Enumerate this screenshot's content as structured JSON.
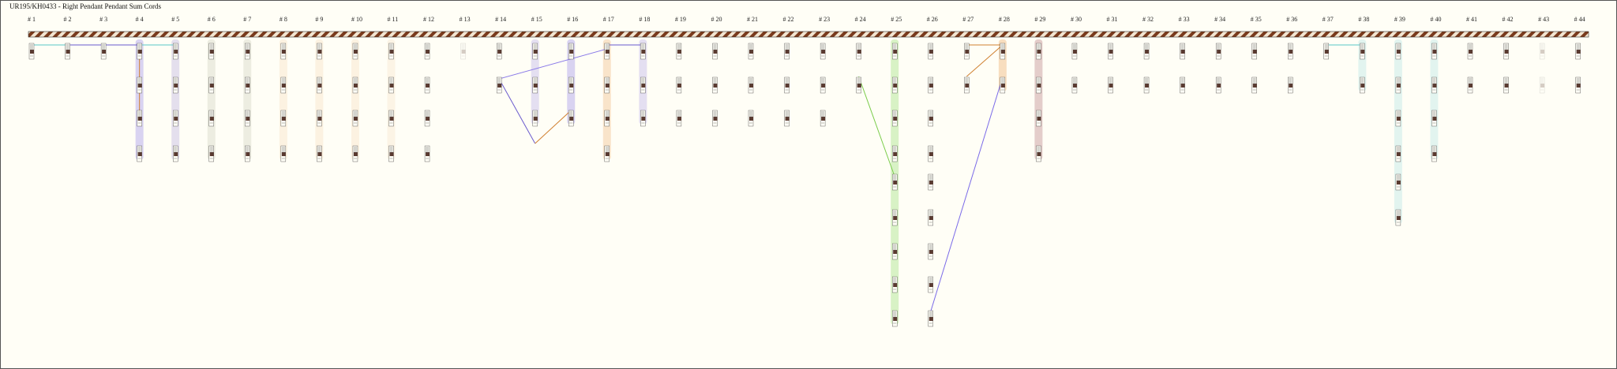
{
  "title": "UR195/KH0433 - Right Pendant Pendant Sum Cords",
  "cords": [
    {
      "label": "# 1"
    },
    {
      "label": "# 2"
    },
    {
      "label": "# 3"
    },
    {
      "label": "# 4"
    },
    {
      "label": "# 5"
    },
    {
      "label": "# 6"
    },
    {
      "label": "# 7"
    },
    {
      "label": "# 8"
    },
    {
      "label": "# 9"
    },
    {
      "label": "# 10"
    },
    {
      "label": "# 11"
    },
    {
      "label": "# 12"
    },
    {
      "label": "# 13"
    },
    {
      "label": "# 14"
    },
    {
      "label": "# 15"
    },
    {
      "label": "# 16"
    },
    {
      "label": "# 17"
    },
    {
      "label": "# 18"
    },
    {
      "label": "# 19"
    },
    {
      "label": "# 20"
    },
    {
      "label": "# 21"
    },
    {
      "label": "# 22"
    },
    {
      "label": "# 23"
    },
    {
      "label": "# 24"
    },
    {
      "label": "# 25"
    },
    {
      "label": "# 26"
    },
    {
      "label": "# 27"
    },
    {
      "label": "# 28"
    },
    {
      "label": "# 29"
    },
    {
      "label": "# 30"
    },
    {
      "label": "# 31"
    },
    {
      "label": "# 32"
    },
    {
      "label": "# 33"
    },
    {
      "label": "# 34"
    },
    {
      "label": "# 35"
    },
    {
      "label": "# 36"
    },
    {
      "label": "# 37"
    },
    {
      "label": "# 38"
    },
    {
      "label": "# 39"
    },
    {
      "label": "# 40"
    },
    {
      "label": "# 41"
    },
    {
      "label": "# 42"
    },
    {
      "label": "# 43"
    },
    {
      "label": "# 44"
    }
  ]
}
